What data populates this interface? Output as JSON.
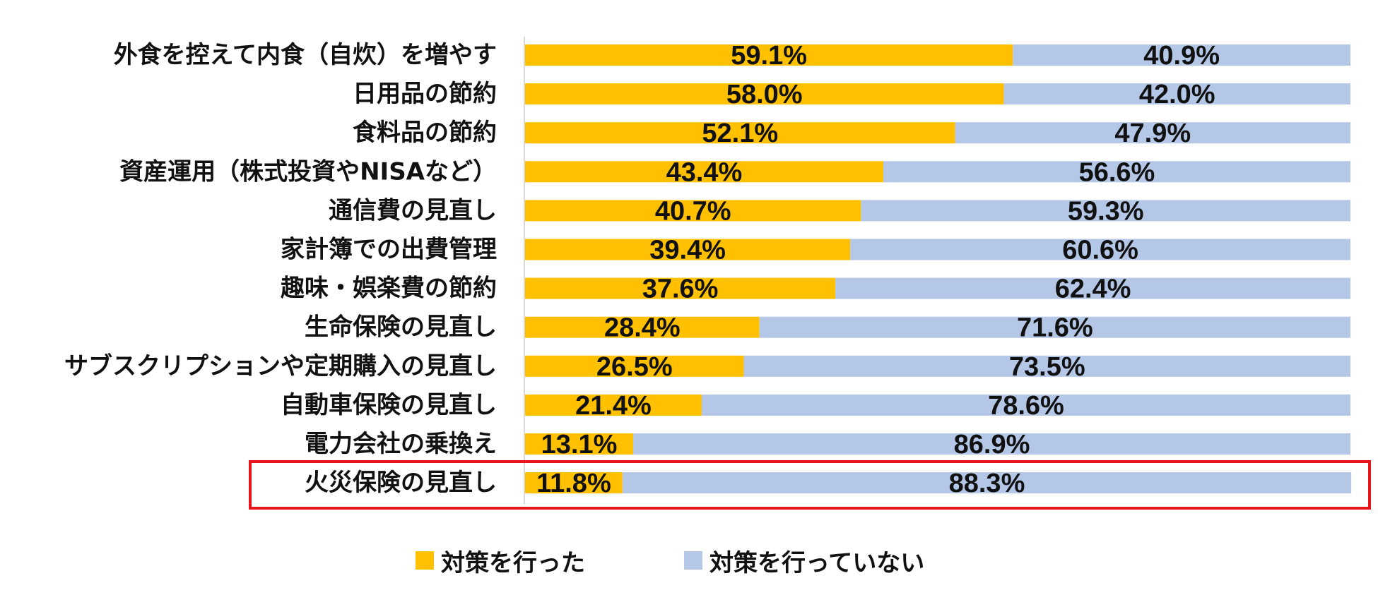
{
  "chart_data": {
    "type": "bar",
    "orientation": "horizontal",
    "stacked": "100%",
    "categories": [
      "外食を控えて内食（自炊）を増やす",
      "日用品の節約",
      "食料品の節約",
      "資産運用（株式投資やNISAなど）",
      "通信費の見直し",
      "家計簿での出費管理",
      "趣味・娯楽費の節約",
      "生命保険の見直し",
      "サブスクリプションや定期購入の見直し",
      "自動車保険の見直し",
      "電力会社の乗換え",
      "火災保険の見直し"
    ],
    "series": [
      {
        "name": "対策を行った",
        "color": "#FFC000",
        "values": [
          59.1,
          58.0,
          52.1,
          43.4,
          40.7,
          39.4,
          37.6,
          28.4,
          26.5,
          21.4,
          13.1,
          11.8
        ],
        "labels": [
          "59.1%",
          "58.0%",
          "52.1%",
          "43.4%",
          "40.7%",
          "39.4%",
          "37.6%",
          "28.4%",
          "26.5%",
          "21.4%",
          "13.1%",
          "11.8%"
        ]
      },
      {
        "name": "対策を行っていない",
        "color": "#B4C7E7",
        "values": [
          40.9,
          42.0,
          47.9,
          56.6,
          59.3,
          60.6,
          62.4,
          71.6,
          73.5,
          78.6,
          86.9,
          88.3
        ],
        "labels": [
          "40.9%",
          "42.0%",
          "47.9%",
          "56.6%",
          "59.3%",
          "60.6%",
          "62.4%",
          "71.6%",
          "73.5%",
          "78.6%",
          "86.9%",
          "88.3%"
        ]
      }
    ],
    "xlim": [
      0,
      100
    ],
    "grid": false,
    "legend_position": "bottom",
    "highlighted_category": "火災保険の見直し",
    "highlight_color": "#E8141C"
  },
  "legend": {
    "items": [
      {
        "label": "対策を行った",
        "color": "#FFC000"
      },
      {
        "label": "対策を行っていない",
        "color": "#B4C7E7"
      }
    ]
  }
}
